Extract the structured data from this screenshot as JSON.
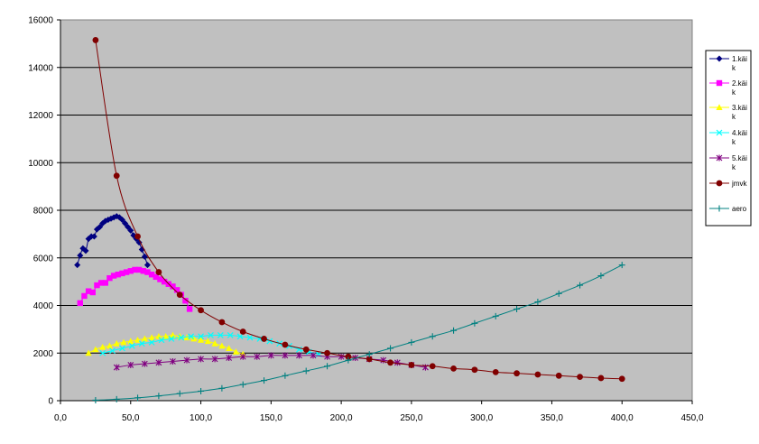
{
  "chart_data": {
    "type": "line",
    "title": "",
    "xlabel": "",
    "ylabel": "",
    "xlim": [
      0,
      450
    ],
    "ylim": [
      0,
      16000
    ],
    "x_ticks": [
      "0,0",
      "50,0",
      "100,0",
      "150,0",
      "200,0",
      "250,0",
      "300,0",
      "350,0",
      "400,0",
      "450,0"
    ],
    "y_ticks": [
      "0",
      "2000",
      "4000",
      "6000",
      "8000",
      "10000",
      "12000",
      "14000",
      "16000"
    ],
    "grid": "horizontal",
    "plot_background": "#C0C0C0",
    "legend_position": "right",
    "series": [
      {
        "name": "1.käik",
        "legend_lines": [
          "1.käi",
          "k"
        ],
        "color": "#000080",
        "marker": "diamond",
        "points": [
          [
            12,
            5700
          ],
          [
            14,
            6100
          ],
          [
            16,
            6400
          ],
          [
            18,
            6300
          ],
          [
            20,
            6800
          ],
          [
            22,
            6900
          ],
          [
            24,
            6900
          ],
          [
            26,
            7200
          ],
          [
            28,
            7300
          ],
          [
            30,
            7450
          ],
          [
            32,
            7550
          ],
          [
            34,
            7600
          ],
          [
            36,
            7650
          ],
          [
            38,
            7700
          ],
          [
            40,
            7750
          ],
          [
            42,
            7700
          ],
          [
            44,
            7600
          ],
          [
            46,
            7450
          ],
          [
            48,
            7300
          ],
          [
            50,
            7150
          ],
          [
            52,
            6950
          ],
          [
            54,
            6800
          ],
          [
            56,
            6650
          ],
          [
            58,
            6350
          ],
          [
            60,
            6050
          ],
          [
            62,
            5700
          ]
        ]
      },
      {
        "name": "2.käik",
        "legend_lines": [
          "2.käi",
          "k"
        ],
        "color": "#FF00FF",
        "marker": "square",
        "points": [
          [
            14,
            4100
          ],
          [
            17,
            4400
          ],
          [
            20,
            4600
          ],
          [
            23,
            4550
          ],
          [
            26,
            4850
          ],
          [
            29,
            4950
          ],
          [
            32,
            4950
          ],
          [
            35,
            5150
          ],
          [
            38,
            5250
          ],
          [
            41,
            5300
          ],
          [
            44,
            5350
          ],
          [
            47,
            5400
          ],
          [
            50,
            5450
          ],
          [
            53,
            5500
          ],
          [
            56,
            5500
          ],
          [
            59,
            5450
          ],
          [
            62,
            5400
          ],
          [
            65,
            5300
          ],
          [
            68,
            5200
          ],
          [
            71,
            5100
          ],
          [
            74,
            5000
          ],
          [
            77,
            4900
          ],
          [
            80,
            4800
          ],
          [
            83,
            4650
          ],
          [
            86,
            4450
          ],
          [
            89,
            4200
          ],
          [
            92,
            3850
          ]
        ]
      },
      {
        "name": "3.käik",
        "legend_lines": [
          "3.käi",
          "k"
        ],
        "color": "#FFFF00",
        "marker": "triangle",
        "points": [
          [
            20,
            2000
          ],
          [
            25,
            2150
          ],
          [
            30,
            2250
          ],
          [
            35,
            2300
          ],
          [
            40,
            2400
          ],
          [
            45,
            2450
          ],
          [
            50,
            2500
          ],
          [
            55,
            2550
          ],
          [
            60,
            2600
          ],
          [
            65,
            2650
          ],
          [
            70,
            2700
          ],
          [
            75,
            2700
          ],
          [
            80,
            2750
          ],
          [
            85,
            2700
          ],
          [
            90,
            2650
          ],
          [
            95,
            2600
          ],
          [
            100,
            2550
          ],
          [
            105,
            2500
          ],
          [
            110,
            2400
          ],
          [
            115,
            2300
          ],
          [
            120,
            2200
          ],
          [
            125,
            2050
          ],
          [
            130,
            1950
          ]
        ]
      },
      {
        "name": "4.käik",
        "legend_lines": [
          "4.käi",
          "k"
        ],
        "color": "#00FFFF",
        "marker": "x",
        "points": [
          [
            30,
            2000
          ],
          [
            37,
            2100
          ],
          [
            44,
            2200
          ],
          [
            51,
            2300
          ],
          [
            58,
            2400
          ],
          [
            65,
            2450
          ],
          [
            72,
            2550
          ],
          [
            79,
            2600
          ],
          [
            86,
            2650
          ],
          [
            93,
            2700
          ],
          [
            100,
            2700
          ],
          [
            107,
            2750
          ],
          [
            114,
            2750
          ],
          [
            121,
            2750
          ],
          [
            128,
            2700
          ],
          [
            135,
            2650
          ],
          [
            142,
            2600
          ],
          [
            149,
            2500
          ],
          [
            156,
            2400
          ],
          [
            163,
            2300
          ],
          [
            170,
            2150
          ],
          [
            177,
            2050
          ],
          [
            184,
            1950
          ]
        ]
      },
      {
        "name": "5.käik",
        "legend_lines": [
          "5.käi",
          "k"
        ],
        "color": "#800080",
        "marker": "star",
        "points": [
          [
            40,
            1400
          ],
          [
            50,
            1500
          ],
          [
            60,
            1550
          ],
          [
            70,
            1600
          ],
          [
            80,
            1650
          ],
          [
            90,
            1700
          ],
          [
            100,
            1750
          ],
          [
            110,
            1750
          ],
          [
            120,
            1800
          ],
          [
            130,
            1850
          ],
          [
            140,
            1850
          ],
          [
            150,
            1900
          ],
          [
            160,
            1900
          ],
          [
            170,
            1900
          ],
          [
            180,
            1900
          ],
          [
            190,
            1850
          ],
          [
            200,
            1850
          ],
          [
            210,
            1800
          ],
          [
            220,
            1750
          ],
          [
            230,
            1700
          ],
          [
            240,
            1600
          ],
          [
            250,
            1500
          ],
          [
            260,
            1400
          ]
        ]
      },
      {
        "name": "jmvk",
        "legend_lines": [
          "jmvk"
        ],
        "color": "#800000",
        "marker": "circle",
        "points": [
          [
            25,
            15150
          ],
          [
            40,
            9450
          ],
          [
            55,
            6900
          ],
          [
            70,
            5400
          ],
          [
            85,
            4450
          ],
          [
            100,
            3800
          ],
          [
            115,
            3300
          ],
          [
            130,
            2900
          ],
          [
            145,
            2600
          ],
          [
            160,
            2350
          ],
          [
            175,
            2150
          ],
          [
            190,
            2000
          ],
          [
            205,
            1850
          ],
          [
            220,
            1750
          ],
          [
            235,
            1600
          ],
          [
            250,
            1500
          ],
          [
            265,
            1450
          ],
          [
            280,
            1350
          ],
          [
            295,
            1300
          ],
          [
            310,
            1200
          ],
          [
            325,
            1150
          ],
          [
            340,
            1100
          ],
          [
            355,
            1050
          ],
          [
            370,
            1000
          ],
          [
            385,
            950
          ],
          [
            400,
            920
          ]
        ]
      },
      {
        "name": "aero",
        "legend_lines": [
          "aero"
        ],
        "color": "#008080",
        "marker": "plus",
        "points": [
          [
            25,
            20
          ],
          [
            40,
            60
          ],
          [
            55,
            120
          ],
          [
            70,
            200
          ],
          [
            85,
            300
          ],
          [
            100,
            400
          ],
          [
            115,
            520
          ],
          [
            130,
            680
          ],
          [
            145,
            850
          ],
          [
            160,
            1050
          ],
          [
            175,
            1250
          ],
          [
            190,
            1450
          ],
          [
            205,
            1700
          ],
          [
            220,
            1950
          ],
          [
            235,
            2200
          ],
          [
            250,
            2450
          ],
          [
            265,
            2700
          ],
          [
            280,
            2950
          ],
          [
            295,
            3250
          ],
          [
            310,
            3550
          ],
          [
            325,
            3850
          ],
          [
            340,
            4150
          ],
          [
            355,
            4500
          ],
          [
            370,
            4850
          ],
          [
            385,
            5250
          ],
          [
            400,
            5700
          ]
        ]
      }
    ]
  }
}
